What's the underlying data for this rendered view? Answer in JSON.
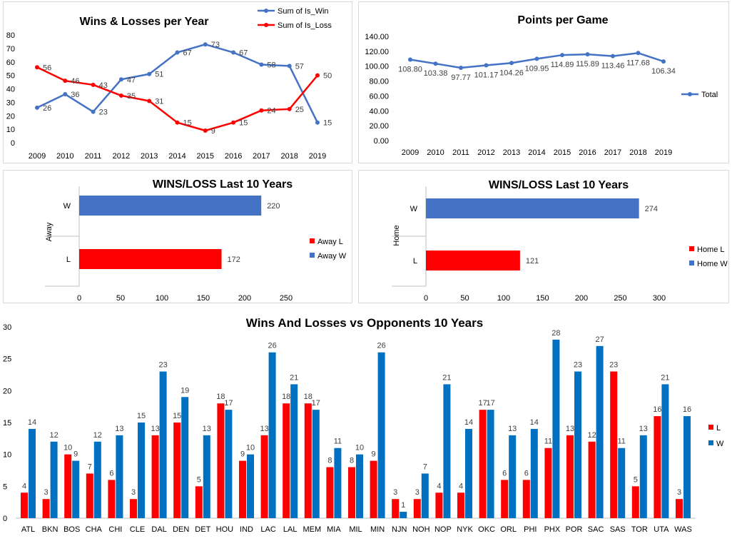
{
  "colors": {
    "blue": "#4472c4",
    "red": "#ff0000",
    "blue2": "#0070c0",
    "grid": "#d9d9d9",
    "axis": "#bfbfbf"
  },
  "chart_data": [
    {
      "id": "wl_year",
      "type": "line",
      "title": "Wins & Losses  per Year",
      "categories": [
        "2009",
        "2010",
        "2011",
        "2012",
        "2013",
        "2014",
        "2015",
        "2016",
        "2017",
        "2018",
        "2019"
      ],
      "series": [
        {
          "name": "Sum of Is_Win",
          "color": "#4472c4",
          "values": [
            26,
            36,
            23,
            47,
            51,
            67,
            73,
            67,
            58,
            57,
            15
          ]
        },
        {
          "name": "Sum of Is_Loss",
          "color": "#ff0000",
          "values": [
            56,
            46,
            43,
            35,
            31,
            15,
            9,
            15,
            24,
            25,
            50
          ]
        }
      ],
      "ylim": [
        0,
        80
      ],
      "yticks": [
        "0",
        "10",
        "20",
        "30",
        "40",
        "50",
        "60",
        "70",
        "80"
      ],
      "grid": false,
      "legend": "top-right"
    },
    {
      "id": "ppg",
      "type": "line",
      "title": "Points per Game",
      "categories": [
        "2009",
        "2010",
        "2011",
        "2012",
        "2013",
        "2014",
        "2015",
        "2016",
        "2017",
        "2018",
        "2019"
      ],
      "series": [
        {
          "name": "Total",
          "color": "#4472c4",
          "values": [
            108.8,
            103.38,
            97.77,
            101.17,
            104.26,
            109.95,
            114.89,
            115.89,
            113.46,
            117.68,
            106.34
          ],
          "labels": [
            "108.80",
            "103.38",
            "97.77",
            "101.17",
            "104.26",
            "109.95",
            "114.89",
            "115.89",
            "113.46",
            "117.68",
            "106.34"
          ]
        }
      ],
      "ylim": [
        0,
        140
      ],
      "yticks": [
        "0.00",
        "20.00",
        "40.00",
        "60.00",
        "80.00",
        "100.00",
        "120.00",
        "140.00"
      ],
      "grid": false,
      "legend": "right"
    },
    {
      "id": "away",
      "type": "bar",
      "orientation": "horizontal",
      "title": "WINS/LOSS  Last 10 Years",
      "group_label": "Away",
      "categories": [
        "W",
        "L"
      ],
      "values": [
        220,
        172
      ],
      "bar_colors": [
        "#4472c4",
        "#ff0000"
      ],
      "legend_items": [
        {
          "name": "Away L",
          "color": "#ff0000"
        },
        {
          "name": "Away W",
          "color": "#4472c4"
        }
      ],
      "xlim": [
        0,
        250
      ],
      "xticks": [
        "0",
        "50",
        "100",
        "150",
        "200",
        "250"
      ],
      "legend": "right"
    },
    {
      "id": "home",
      "type": "bar",
      "orientation": "horizontal",
      "title": "WINS/LOSS Last 10 Years",
      "group_label": "Home",
      "categories": [
        "W",
        "L"
      ],
      "values": [
        274,
        121
      ],
      "bar_colors": [
        "#4472c4",
        "#ff0000"
      ],
      "legend_items": [
        {
          "name": "Home L",
          "color": "#ff0000"
        },
        {
          "name": "Home W",
          "color": "#4472c4"
        }
      ],
      "xlim": [
        0,
        300
      ],
      "xticks": [
        "0",
        "50",
        "100",
        "150",
        "200",
        "250",
        "300"
      ],
      "legend": "right"
    },
    {
      "id": "opp",
      "type": "bar",
      "title": "Wins And Losses vs Opponents 10 Years",
      "categories": [
        "ATL",
        "BKN",
        "BOS",
        "CHA",
        "CHI",
        "CLE",
        "DAL",
        "DEN",
        "DET",
        "HOU",
        "IND",
        "LAC",
        "LAL",
        "MEM",
        "MIA",
        "MIL",
        "MIN",
        "NJN",
        "NOH",
        "NOP",
        "NYK",
        "OKC",
        "ORL",
        "PHI",
        "PHX",
        "POR",
        "SAC",
        "SAS",
        "TOR",
        "UTA",
        "WAS"
      ],
      "series": [
        {
          "name": "L",
          "color": "#ff0000",
          "values": [
            4,
            3,
            10,
            7,
            6,
            3,
            13,
            15,
            5,
            18,
            9,
            13,
            18,
            18,
            8,
            8,
            9,
            3,
            3,
            4,
            4,
            17,
            6,
            6,
            11,
            13,
            12,
            23,
            5,
            16,
            3
          ]
        },
        {
          "name": "W",
          "color": "#0070c0",
          "values": [
            14,
            12,
            9,
            12,
            13,
            15,
            23,
            19,
            13,
            17,
            10,
            26,
            21,
            17,
            11,
            10,
            26,
            1,
            7,
            21,
            14,
            17,
            13,
            14,
            28,
            23,
            27,
            11,
            13,
            21,
            16
          ]
        }
      ],
      "ylim": [
        0,
        30
      ],
      "yticks": [
        "0",
        "5",
        "10",
        "15",
        "20",
        "25",
        "30"
      ],
      "grid": false,
      "legend": "right"
    }
  ]
}
